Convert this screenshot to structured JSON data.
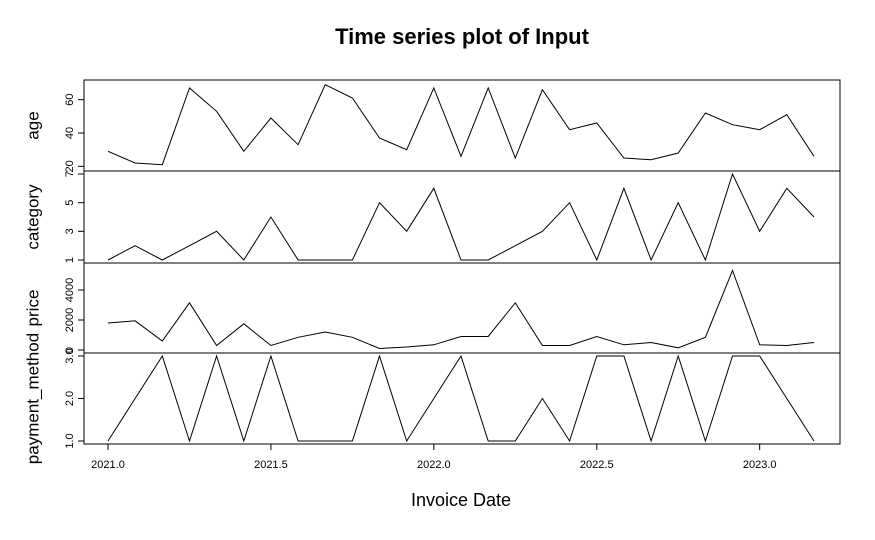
{
  "chart_data": {
    "type": "line",
    "title": "Time series plot of Input",
    "xlabel": "Invoice Date",
    "x": [
      2021.0,
      2021.0833,
      2021.1667,
      2021.25,
      2021.3333,
      2021.4167,
      2021.5,
      2021.5833,
      2021.6667,
      2021.75,
      2021.8333,
      2021.9167,
      2022.0,
      2022.0833,
      2022.1667,
      2022.25,
      2022.3333,
      2022.4167,
      2022.5,
      2022.5833,
      2022.6667,
      2022.75,
      2022.8333,
      2022.9167,
      2023.0,
      2023.0833,
      2023.1667
    ],
    "xlim": [
      2021.0,
      2023.1667
    ],
    "x_ticks": [
      2021.0,
      2021.5,
      2022.0,
      2022.5,
      2023.0
    ],
    "x_tick_labels": [
      "2021.0",
      "2021.5",
      "2022.0",
      "2022.5",
      "2023.0"
    ],
    "series": [
      {
        "name": "age",
        "ylim": [
          19,
          70
        ],
        "y_ticks": [
          20,
          40,
          60
        ],
        "y_tick_labels": [
          "20",
          "40",
          "60"
        ],
        "values": [
          29,
          22,
          21,
          67,
          53,
          29,
          49,
          33,
          69,
          61,
          37,
          30,
          67,
          26,
          67,
          25,
          66,
          42,
          46,
          25,
          24,
          28,
          52,
          45,
          42,
          51,
          26
        ]
      },
      {
        "name": "category",
        "ylim": [
          1,
          7
        ],
        "y_ticks": [
          1,
          3,
          5,
          7
        ],
        "y_tick_labels": [
          "1",
          "3",
          "5",
          "7"
        ],
        "values": [
          1,
          2,
          1,
          2,
          3,
          1,
          4,
          1,
          1,
          1,
          5,
          3,
          6,
          1,
          1,
          2,
          3,
          5,
          1,
          6,
          1,
          5,
          1,
          7,
          3,
          6,
          4
        ]
      },
      {
        "name": "price",
        "ylim": [
          0,
          5600
        ],
        "y_ticks": [
          0,
          2000,
          4000
        ],
        "y_tick_labels": [
          "0",
          "2000",
          "4000"
        ],
        "values": [
          1800,
          1950,
          600,
          3150,
          300,
          1750,
          300,
          850,
          1200,
          850,
          100,
          200,
          350,
          900,
          900,
          3150,
          300,
          300,
          900,
          350,
          500,
          150,
          850,
          5300,
          350,
          300,
          500
        ]
      },
      {
        "name": "payment_method",
        "ylim": [
          1,
          3
        ],
        "y_ticks": [
          1.0,
          2.0,
          3.0
        ],
        "y_tick_labels": [
          "1.0",
          "2.0",
          "3.0"
        ],
        "values": [
          1,
          2,
          3,
          1,
          3,
          1,
          3,
          1,
          1,
          1,
          3,
          1,
          2,
          3,
          1,
          1,
          2,
          1,
          3,
          3,
          1,
          3,
          1,
          3,
          3,
          2,
          1
        ]
      }
    ]
  }
}
